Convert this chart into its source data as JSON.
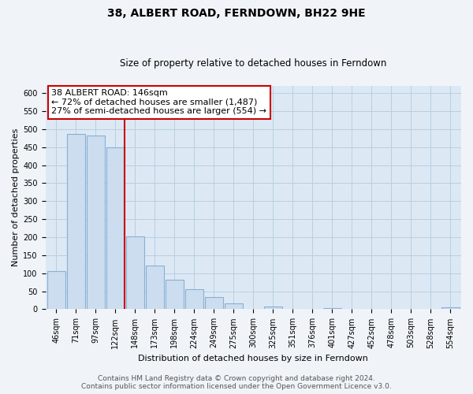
{
  "title": "38, ALBERT ROAD, FERNDOWN, BH22 9HE",
  "subtitle": "Size of property relative to detached houses in Ferndown",
  "xlabel": "Distribution of detached houses by size in Ferndown",
  "ylabel": "Number of detached properties",
  "bar_labels": [
    "46sqm",
    "71sqm",
    "97sqm",
    "122sqm",
    "148sqm",
    "173sqm",
    "198sqm",
    "224sqm",
    "249sqm",
    "275sqm",
    "300sqm",
    "325sqm",
    "351sqm",
    "376sqm",
    "401sqm",
    "427sqm",
    "452sqm",
    "478sqm",
    "503sqm",
    "528sqm",
    "554sqm"
  ],
  "bar_values": [
    105,
    487,
    483,
    450,
    202,
    122,
    82,
    56,
    34,
    16,
    0,
    8,
    0,
    0,
    3,
    0,
    0,
    0,
    0,
    0,
    5
  ],
  "bar_color": "#ccddf0",
  "bar_edge_color": "#8aafd4",
  "vline_color": "#cc0000",
  "annotation_text": "38 ALBERT ROAD: 146sqm\n← 72% of detached houses are smaller (1,487)\n27% of semi-detached houses are larger (554) →",
  "annotation_box_color": "#ffffff",
  "annotation_box_edge": "#cc0000",
  "ylim": [
    0,
    620
  ],
  "yticks": [
    0,
    50,
    100,
    150,
    200,
    250,
    300,
    350,
    400,
    450,
    500,
    550,
    600
  ],
  "grid_color": "#b8cfe0",
  "bg_color": "#dce9f5",
  "fig_bg_color": "#f0f4f8",
  "footer_line1": "Contains HM Land Registry data © Crown copyright and database right 2024.",
  "footer_line2": "Contains public sector information licensed under the Open Government Licence v3.0.",
  "title_fontsize": 10,
  "subtitle_fontsize": 8.5,
  "axis_label_fontsize": 8,
  "tick_fontsize": 7,
  "annotation_fontsize": 8,
  "footer_fontsize": 6.5
}
